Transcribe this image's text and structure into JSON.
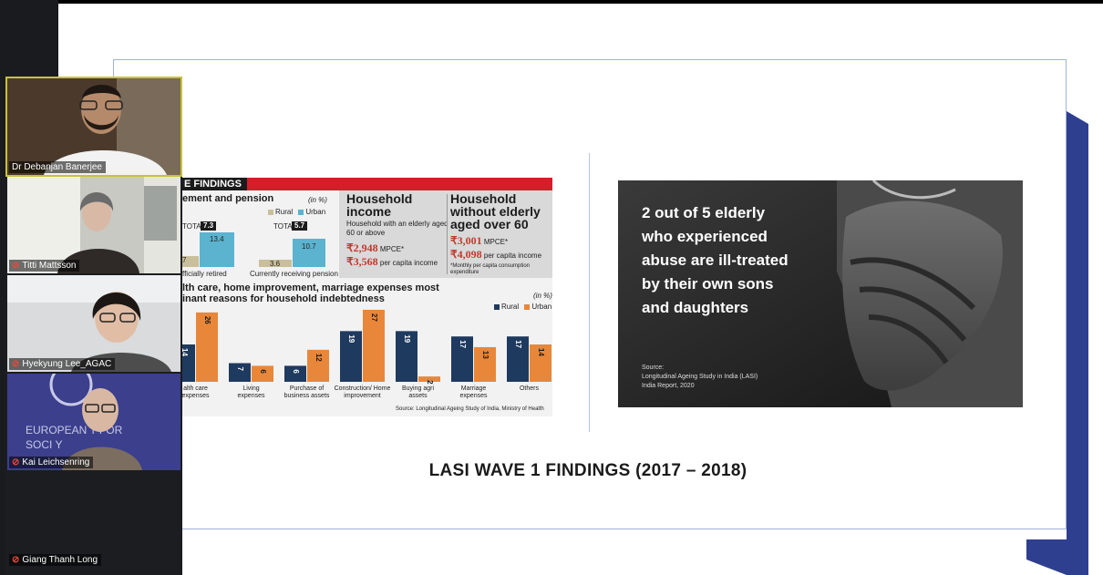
{
  "participants": [
    {
      "name": "Dr Debanjan Banerjee",
      "muted": false,
      "speaking": true
    },
    {
      "name": "Titti Mattsson",
      "muted": true
    },
    {
      "name": "Hyekyung Lee_AGAC",
      "muted": true
    },
    {
      "name": "Kai Leichsenring",
      "muted": true,
      "background_text": "EUROPEAN ... FOR SOCI..."
    },
    {
      "name": "Giang Thanh Long",
      "muted": true
    }
  ],
  "slide": {
    "title": "LASI WAVE 1 FINDINGS (2017 – 2018)",
    "news": {
      "banner": "E FINDINGS",
      "section1_heading": "ement and pension",
      "unit": "(in %)",
      "legend_rural": "Rural",
      "legend_urban": "Urban",
      "total1_label": "TOTAL",
      "total1_value": "7.3",
      "total2_label": "TOTAL",
      "total2_value": "5.7",
      "retired_rural": "7",
      "retired_urban": "13.4",
      "pension_rural": "3.6",
      "pension_urban": "10.7",
      "retired_label": "fficially retired",
      "pension_label": "Currently receiving pension",
      "household_income": {
        "heading": "Household income",
        "sub": "Household with an elderly aged 60 or above",
        "mpce": "₹2,948",
        "mpce_unit": "MPCE*",
        "pci": "₹3,568",
        "pci_unit": "per capita income"
      },
      "without_elderly": {
        "heading": "Household without elderly aged over 60",
        "mpce": "₹3,001",
        "mpce_unit": "MPCE*",
        "pci": "₹4,098",
        "pci_unit": "per capita income",
        "footnote": "*Monthly per capita consumption expenditure"
      },
      "section2_heading_1": "lth care, home improvement, marriage expenses most",
      "section2_heading_2": "inant reasons for household indebtedness",
      "source": "Source: Longitudinal Ageing Study of India, Ministry of Health"
    },
    "photo": {
      "lines": [
        "2 out of 5 elderly",
        "who experienced",
        "abuse are ill-treated",
        "by their own sons",
        "and daughters"
      ],
      "source_1": "Source:",
      "source_2": "Longitudinal Ageing Study in India (LASI)",
      "source_3": "India Report, 2020"
    }
  },
  "colors": {
    "rural": "#1f3a5f",
    "urban": "#e8873a",
    "retired_urban": "#5bb3cf",
    "retired_rural": "#c9bf9a",
    "banner_red": "#d41f2a",
    "slide_accent": "#2f3f8f"
  },
  "chart_data": {
    "type": "bar",
    "title": "lth care, home improvement, marriage expenses most inant reasons for household indebtedness",
    "ylabel": "(in %)",
    "categories": [
      "alth care expenses",
      "Living expenses",
      "Purchase of business assets",
      "Construction/ Home improvement",
      "Buying agri assets",
      "Marriage expenses",
      "Others"
    ],
    "series": [
      {
        "name": "Rural",
        "values": [
          14,
          7,
          6,
          19,
          19,
          17,
          17
        ]
      },
      {
        "name": "Urban",
        "values": [
          26,
          6,
          12,
          27,
          2,
          13,
          14
        ]
      }
    ],
    "ylim": [
      0,
      28
    ],
    "legend": "top-right"
  }
}
